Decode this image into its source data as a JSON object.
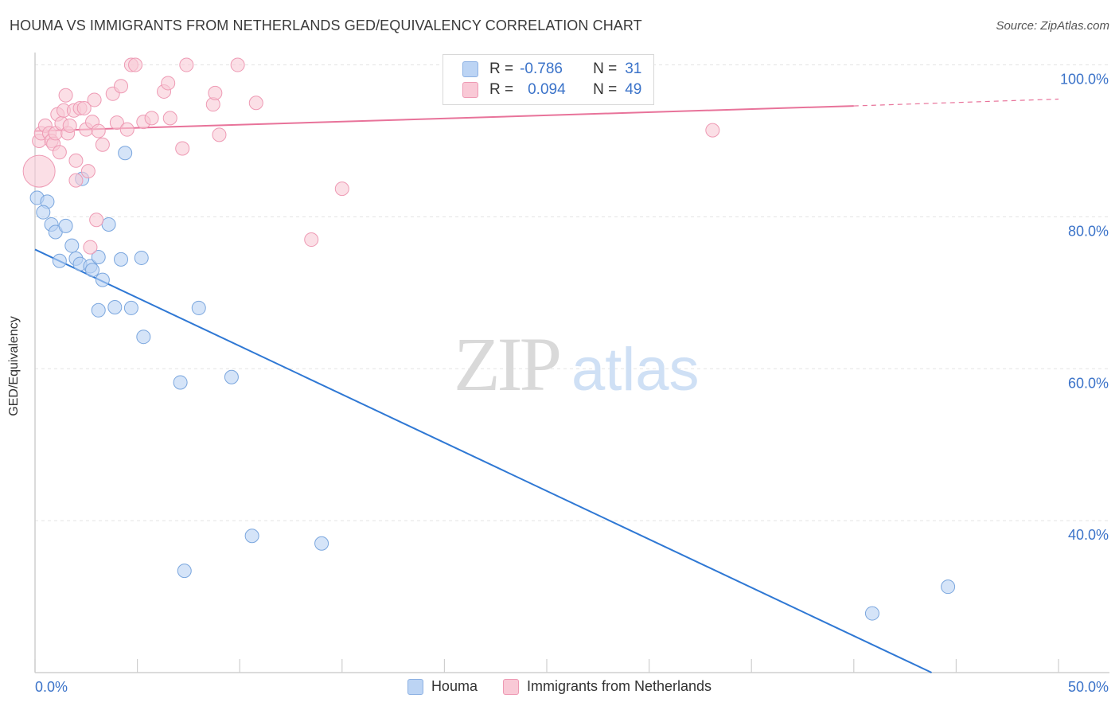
{
  "header": {
    "title": "HOUMA VS IMMIGRANTS FROM NETHERLANDS GED/EQUIVALENCY CORRELATION CHART",
    "source": "Source: ZipAtlas.com"
  },
  "watermark": {
    "zip": "ZIP",
    "atlas": "atlas"
  },
  "legend": {
    "r_label": "R =",
    "n_label": "N =",
    "rows": [
      {
        "r": "-0.786",
        "n": "31",
        "color": "#a8c6f0"
      },
      {
        "r": "0.094",
        "n": "49",
        "color": "#f7b8cb"
      }
    ]
  },
  "bottom_legend": [
    "Houma",
    "Immigrants from Netherlands"
  ],
  "colors": {
    "blue_fill": "#b9d2f3",
    "blue_stroke": "#7aa6de",
    "blue_line": "#2f78d4",
    "pink_fill": "#f9c9d6",
    "pink_stroke": "#ee9ab4",
    "pink_line": "#e8739a",
    "tick_label": "#3b73c9"
  },
  "chart_data": {
    "type": "scatter",
    "xlabel": "",
    "ylabel": "GED/Equivalency",
    "xlim": [
      0,
      50
    ],
    "ylim": [
      20,
      101
    ],
    "x_tick_labels": [
      "0.0%",
      "50.0%"
    ],
    "y_ticks": [
      40,
      60,
      80,
      100
    ],
    "y_tick_labels": [
      "40.0%",
      "60.0%",
      "80.0%",
      "100.0%"
    ],
    "grid": true,
    "series": [
      {
        "name": "Houma",
        "color": "#a8c6f0",
        "points": [
          [
            0.1,
            82.5
          ],
          [
            0.6,
            82.0
          ],
          [
            0.4,
            80.6
          ],
          [
            0.8,
            79.0
          ],
          [
            1.0,
            78.0
          ],
          [
            1.5,
            78.8
          ],
          [
            3.6,
            79.0
          ],
          [
            1.2,
            74.2
          ],
          [
            1.8,
            76.2
          ],
          [
            2.0,
            74.5
          ],
          [
            2.2,
            73.8
          ],
          [
            2.7,
            73.5
          ],
          [
            2.8,
            73.0
          ],
          [
            3.1,
            74.7
          ],
          [
            3.3,
            71.7
          ],
          [
            4.2,
            74.4
          ],
          [
            5.2,
            74.6
          ],
          [
            3.1,
            67.7
          ],
          [
            3.9,
            68.1
          ],
          [
            4.7,
            68.0
          ],
          [
            8.0,
            68.0
          ],
          [
            5.3,
            64.2
          ],
          [
            7.1,
            58.2
          ],
          [
            9.6,
            58.9
          ],
          [
            2.3,
            85.0
          ],
          [
            4.4,
            88.4
          ],
          [
            10.6,
            38.0
          ],
          [
            14.0,
            37.0
          ],
          [
            7.3,
            33.4
          ],
          [
            40.9,
            27.8
          ],
          [
            44.6,
            31.3
          ]
        ],
        "trend": {
          "x0": 0,
          "y0": 75.7,
          "x1": 43.8,
          "y1": 20
        }
      },
      {
        "name": "Immigrants from Netherlands",
        "color": "#f7b8cb",
        "points": [
          [
            0.2,
            86.0
          ],
          [
            0.2,
            90.0
          ],
          [
            0.3,
            91.0
          ],
          [
            0.5,
            92.0
          ],
          [
            0.7,
            91.0
          ],
          [
            0.8,
            90.0
          ],
          [
            0.9,
            89.6
          ],
          [
            1.0,
            91.0
          ],
          [
            1.1,
            93.5
          ],
          [
            1.2,
            88.5
          ],
          [
            1.3,
            92.3
          ],
          [
            1.4,
            94.0
          ],
          [
            1.5,
            96.0
          ],
          [
            1.6,
            91.0
          ],
          [
            1.7,
            92.0
          ],
          [
            1.9,
            94.0
          ],
          [
            2.0,
            87.4
          ],
          [
            2.0,
            84.8
          ],
          [
            2.2,
            94.3
          ],
          [
            2.4,
            94.3
          ],
          [
            2.5,
            91.5
          ],
          [
            2.6,
            86.0
          ],
          [
            2.8,
            92.5
          ],
          [
            2.9,
            95.4
          ],
          [
            3.0,
            79.6
          ],
          [
            3.1,
            91.3
          ],
          [
            3.3,
            89.5
          ],
          [
            2.7,
            76.0
          ],
          [
            3.8,
            96.2
          ],
          [
            4.0,
            92.4
          ],
          [
            4.2,
            97.2
          ],
          [
            4.5,
            91.5
          ],
          [
            4.7,
            100.0
          ],
          [
            4.9,
            100.0
          ],
          [
            5.3,
            92.5
          ],
          [
            5.7,
            93.0
          ],
          [
            6.3,
            96.5
          ],
          [
            6.5,
            97.6
          ],
          [
            6.6,
            93.0
          ],
          [
            7.2,
            89.0
          ],
          [
            7.4,
            100.0
          ],
          [
            8.7,
            94.8
          ],
          [
            8.8,
            96.3
          ],
          [
            9.0,
            90.8
          ],
          [
            9.9,
            100.0
          ],
          [
            10.8,
            95.0
          ],
          [
            13.5,
            77.0
          ],
          [
            15.0,
            83.7
          ],
          [
            33.1,
            91.4
          ]
        ],
        "trend": {
          "x0": 0,
          "y0": 91.3,
          "x1": 40,
          "y1": 94.6,
          "dash_to_x": 50,
          "dash_to_y": 95.5
        }
      }
    ]
  }
}
